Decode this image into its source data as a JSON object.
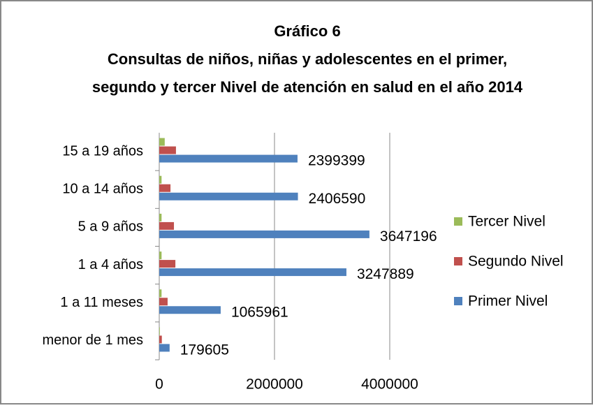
{
  "chart_data": {
    "type": "bar",
    "orientation": "horizontal",
    "title": [
      "Gráfico 6",
      "Consultas de niños, niñas y adolescentes en el primer,",
      "segundo y tercer Nivel de atención en salud en el año 2014"
    ],
    "categories": [
      "menor de 1 mes",
      "1 a 11 meses",
      "1 a 4 años",
      "5 a 9 años",
      "10 a 14 años",
      "15 a 19 años"
    ],
    "series": [
      {
        "name": "Primer Nivel",
        "color": "#4f81bd",
        "values": [
          179605,
          1065961,
          3247889,
          3647196,
          2406590,
          2399399
        ]
      },
      {
        "name": "Segundo Nivel",
        "color": "#c0504d",
        "values": [
          45000,
          145000,
          280000,
          255000,
          195000,
          290000
        ]
      },
      {
        "name": "Tercer Nivel",
        "color": "#9bbb59",
        "values": [
          10000,
          40000,
          40000,
          40000,
          40000,
          95000
        ]
      }
    ],
    "xlim": [
      0,
      4000000
    ],
    "xticks": [
      0,
      2000000,
      4000000
    ],
    "grid": true,
    "legend": "right"
  }
}
